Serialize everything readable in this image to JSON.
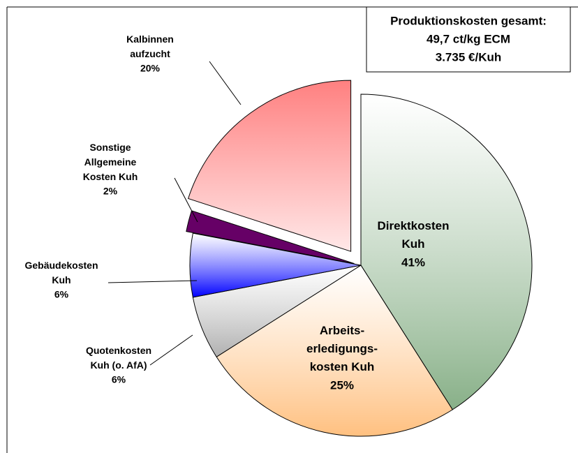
{
  "chart_data": {
    "type": "pie",
    "annotations": [
      "Produktionskosten gesamt:",
      "49,7 ct/kg ECM",
      "3.735 €/Kuh"
    ],
    "categories": [
      "Direktkosten\nKuh",
      "Arbeits-\nerledigungs-\nkosten Kuh",
      "Quotenkosten\nKuh (o. AfA)",
      "Gebäudekosten\nKuh",
      "Sonstige\nAllgemeine\nKosten Kuh",
      "Kalbinnen\naufzucht"
    ],
    "values": [
      41,
      25,
      6,
      6,
      2,
      20
    ],
    "value_labels": [
      "41%",
      "25%",
      "6%",
      "6%",
      "2%",
      "20%"
    ],
    "colors": [
      "#88b088",
      "#ffc080",
      "#b0b0b0",
      "#0000ff",
      "#660066",
      "#ff8080"
    ],
    "explode": [
      0,
      0,
      0,
      0,
      0.04,
      0.1
    ]
  }
}
